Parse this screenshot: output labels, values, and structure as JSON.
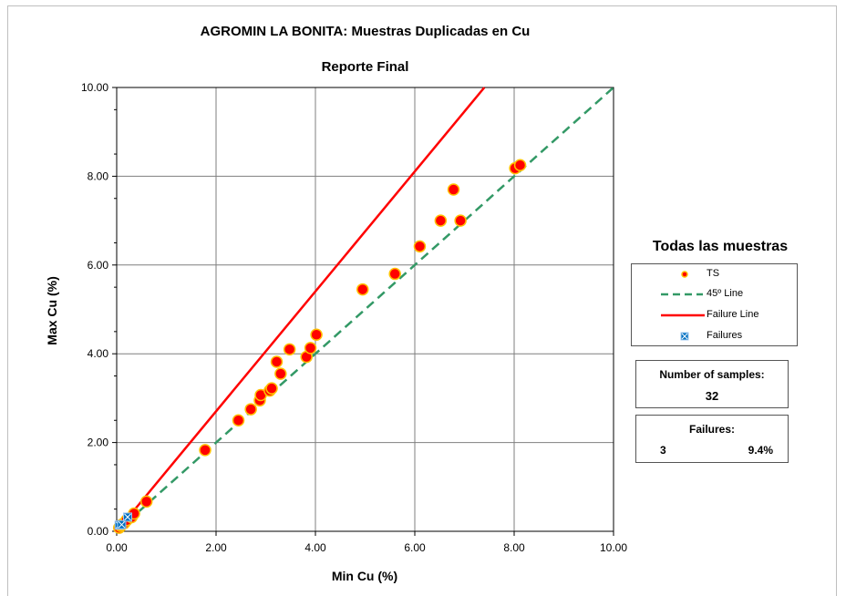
{
  "chart_data": {
    "type": "scatter",
    "title": "AGROMIN LA BONITA: Muestras Duplicadas en Cu",
    "subtitle": "Reporte Final",
    "xlabel": "Min Cu (%)",
    "ylabel": "Max Cu (%)",
    "xlim": [
      0,
      10
    ],
    "ylim": [
      0,
      10
    ],
    "x_ticks": [
      "0.00",
      "2.00",
      "4.00",
      "6.00",
      "8.00",
      "10.00"
    ],
    "y_ticks": [
      "0.00",
      "2.00",
      "4.00",
      "6.00",
      "8.00",
      "10.00"
    ],
    "grid": true,
    "legend_position": "right",
    "series": [
      {
        "name": "TS",
        "color": "#ff0000",
        "edge_color": "#ffc000",
        "points": [
          [
            0.05,
            0.08
          ],
          [
            0.08,
            0.12
          ],
          [
            0.1,
            0.15
          ],
          [
            0.15,
            0.18
          ],
          [
            0.2,
            0.25
          ],
          [
            0.3,
            0.32
          ],
          [
            0.35,
            0.4
          ],
          [
            0.6,
            0.67
          ],
          [
            1.78,
            1.83
          ],
          [
            2.45,
            2.5
          ],
          [
            2.7,
            2.75
          ],
          [
            2.88,
            2.95
          ],
          [
            2.9,
            3.07
          ],
          [
            3.08,
            3.17
          ],
          [
            3.12,
            3.22
          ],
          [
            3.22,
            3.82
          ],
          [
            3.3,
            3.55
          ],
          [
            3.48,
            4.1
          ],
          [
            3.82,
            3.93
          ],
          [
            3.9,
            4.13
          ],
          [
            4.02,
            4.43
          ],
          [
            4.95,
            5.45
          ],
          [
            5.6,
            5.8
          ],
          [
            6.1,
            6.42
          ],
          [
            6.52,
            7.0
          ],
          [
            6.78,
            7.7
          ],
          [
            6.92,
            7.0
          ],
          [
            8.02,
            8.18
          ],
          [
            8.12,
            8.25
          ]
        ]
      },
      {
        "name": "45º Line",
        "color": "#339966",
        "line": [
          [
            0,
            0
          ],
          [
            10,
            10
          ]
        ]
      },
      {
        "name": "Failure Line",
        "color": "#ff0000",
        "line": [
          [
            0,
            0
          ],
          [
            7.4,
            10
          ]
        ]
      },
      {
        "name": "Failures",
        "color": "#0070c0",
        "points": [
          [
            0.05,
            0.14
          ],
          [
            0.1,
            0.15
          ],
          [
            0.22,
            0.32
          ]
        ]
      }
    ]
  },
  "legend": {
    "title": "Todas las muestras",
    "items": [
      "TS",
      "45º Line",
      "Failure Line",
      "Failures"
    ]
  },
  "stats": {
    "samples_label": "Number of samples:",
    "samples_value": "32",
    "failures_label": "Failures:",
    "failures_count": "3",
    "failures_pct": "9.4%"
  }
}
